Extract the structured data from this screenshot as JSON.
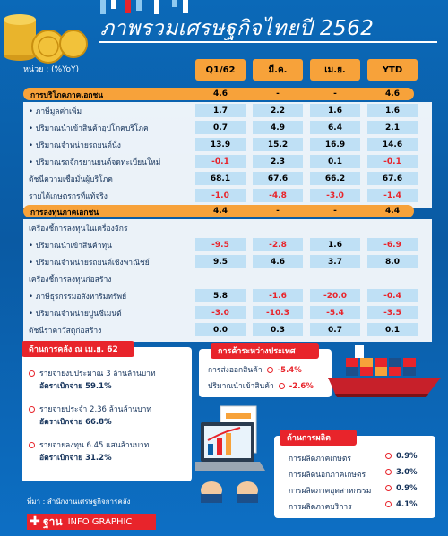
{
  "title": "ภาพรวมเศรษฐกิจไทยปี 2562",
  "unit": "หน่วย : (%YoY)",
  "columns": [
    "Q1/62",
    "มี.ค.",
    "เม.ย.",
    "YTD"
  ],
  "section1": {
    "label": "การบริโภคภาคเอกชน",
    "values": [
      "4.6",
      "-",
      "-",
      "4.6"
    ],
    "rows": [
      {
        "label": "• ภาษีมูลค่าเพิ่ม",
        "values": [
          "1.7",
          "2.2",
          "1.6",
          "1.6"
        ]
      },
      {
        "label": "• ปริมาณนำเข้าสินค้าอุปโภคบริโภค",
        "values": [
          "0.7",
          "4.9",
          "6.4",
          "2.1"
        ]
      },
      {
        "label": "• ปริมาณจำหน่ายรถยนต์นั่ง",
        "values": [
          "13.9",
          "15.2",
          "16.9",
          "14.6"
        ]
      },
      {
        "label": "• ปริมาณรถจักรยานยนต์จดทะเบียนใหม่",
        "values": [
          "-0.1",
          "2.3",
          "0.1",
          "-0.1"
        ]
      },
      {
        "label": "ดัชนีความเชื่อมั่นผู้บริโภค",
        "values": [
          "68.1",
          "67.6",
          "66.2",
          "67.6"
        ]
      },
      {
        "label": "รายได้เกษตรกรที่แท้จริง",
        "values": [
          "-1.0",
          "-4.8",
          "-3.0",
          "-1.4"
        ]
      }
    ]
  },
  "section2": {
    "label": "การลงทุนภาคเอกชน",
    "values": [
      "4.4",
      "-",
      "-",
      "4.4"
    ],
    "rows": [
      {
        "label": "เครื่องชี้การลงทุนในเครื่องจักร",
        "values": [
          "",
          "",
          "",
          ""
        ]
      },
      {
        "label": "• ปริมาณนำเข้าสินค้าทุน",
        "values": [
          "-9.5",
          "-2.8",
          "1.6",
          "-6.9"
        ]
      },
      {
        "label": "• ปริมาณจำหน่ายรถยนต์เชิงพาณิชย์",
        "values": [
          "9.5",
          "4.6",
          "3.7",
          "8.0"
        ]
      },
      {
        "label": "เครื่องชี้การลงทุนก่อสร้าง",
        "values": [
          "",
          "",
          "",
          ""
        ]
      },
      {
        "label": "• ภาษีธุรกรรมอสังหาริมทรัพย์",
        "values": [
          "5.8",
          "-1.6",
          "-20.0",
          "-0.4"
        ]
      },
      {
        "label": "• ปริมาณจำหน่ายปูนซีเมนต์",
        "values": [
          "-3.0",
          "-10.3",
          "-5.4",
          "-3.5"
        ]
      },
      {
        "label": "ดัชนีราคาวัสดุก่อสร้าง",
        "values": [
          "0.0",
          "0.3",
          "0.7",
          "0.1"
        ]
      }
    ]
  },
  "fiscal": {
    "title": "ด้านการคลัง ณ เม.ย. 62",
    "items": [
      {
        "line1": "รายจ่ายงบประมาณ 3 ล้านล้านบาท",
        "line2": "อัตราเบิกจ่าย 59.1%"
      },
      {
        "line1": "รายจ่ายประจำ 2.36 ล้านล้านบาท",
        "line2": "อัตราเบิกจ่าย 66.8%"
      },
      {
        "line1": "รายจ่ายลงทุน 6.45 แสนล้านบาท",
        "line2": "อัตราเบิกจ่าย 31.2%"
      }
    ]
  },
  "trade": {
    "title": "การค้าระหว่างประเทศ",
    "items": [
      {
        "label": "การส่งออกสินค้า",
        "value": "-5.4%"
      },
      {
        "label": "ปริมาณนำเข้าสินค้า",
        "value": "-2.6%"
      }
    ]
  },
  "production": {
    "title": "ด้านการผลิต",
    "items": [
      {
        "label": "การผลิตภาคเกษตร",
        "value": "0.9%"
      },
      {
        "label": "การผลิตนอกภาคเกษตร",
        "value": "3.0%"
      },
      {
        "label": "การผลิตภาคอุตสาหกรรม",
        "value": "0.9%"
      },
      {
        "label": "การผลิตภาคบริการ",
        "value": "4.1%"
      }
    ]
  },
  "source": "ที่มา : สำนักงานเศรษฐกิจการคลัง",
  "logo": {
    "brand": "ฐาน",
    "suffix": "INFO GRAPHIC"
  },
  "colors": {
    "accent": "#f7a23a",
    "negative": "#e8242b",
    "background": "#0a5fa8",
    "cell": "#bfe0f5"
  }
}
